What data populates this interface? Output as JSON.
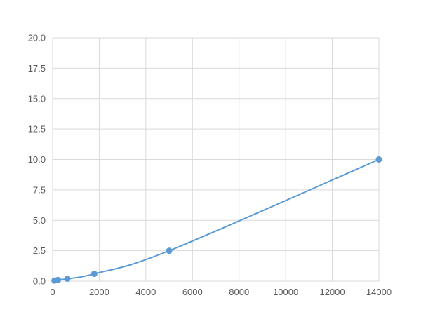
{
  "chart_data": {
    "type": "scatter",
    "title": "",
    "xlabel": "",
    "ylabel": "",
    "xlim": [
      0,
      14000
    ],
    "ylim": [
      0,
      20
    ],
    "x_ticks": [
      "0",
      "2000",
      "4000",
      "6000",
      "8000",
      "10000",
      "12000",
      "14000"
    ],
    "y_ticks": [
      "0.0",
      "2.5",
      "5.0",
      "7.5",
      "10.0",
      "12.5",
      "15.0",
      "17.5",
      "20.0"
    ],
    "grid": true,
    "legend": "none",
    "line": "smooth",
    "color": "#5b9bd5",
    "series": [
      {
        "x": [
          81,
          228,
          638,
          1786,
          5000,
          14000
        ],
        "y": [
          0.05,
          0.1,
          0.2,
          0.6,
          2.5,
          10.0
        ]
      }
    ]
  }
}
